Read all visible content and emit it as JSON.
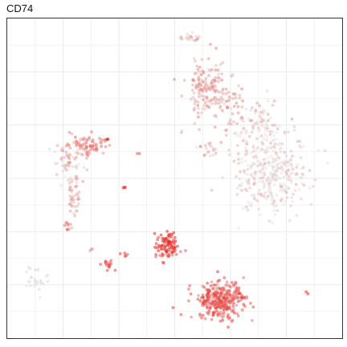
{
  "chart_data": {
    "type": "scatter",
    "title": "CD74",
    "xlabel": "",
    "ylabel": "",
    "grid": true,
    "x_tick_labels": [],
    "y_tick_labels": [],
    "xlim": [
      0,
      100
    ],
    "ylim": [
      0,
      100
    ],
    "color_scale": {
      "low": "#e5e5e5",
      "high": "#e8221c"
    },
    "clusters": [
      {
        "cx": 55,
        "cy": 94,
        "sx": 1.6,
        "sy": 0.7,
        "n": 26,
        "expr": 0.22
      },
      {
        "cx": 59,
        "cy": 79,
        "sx": 2.6,
        "sy": 4.6,
        "n": 140,
        "expr": 0.35
      },
      {
        "cx": 66,
        "cy": 75,
        "sx": 2.8,
        "sy": 2.4,
        "n": 55,
        "expr": 0.3
      },
      {
        "cx": 74,
        "cy": 67,
        "sx": 4.5,
        "sy": 3.5,
        "n": 90,
        "expr": 0.18
      },
      {
        "cx": 79,
        "cy": 52,
        "sx": 5.5,
        "sy": 6.5,
        "n": 330,
        "expr": 0.08
      },
      {
        "cx": 60,
        "cy": 59,
        "sx": 1.5,
        "sy": 1.2,
        "n": 22,
        "expr": 0.18
      },
      {
        "cx": 24,
        "cy": 60,
        "sx": 3.2,
        "sy": 1.6,
        "n": 70,
        "expr": 0.5
      },
      {
        "cx": 18,
        "cy": 55,
        "sx": 2.0,
        "sy": 3.5,
        "n": 60,
        "expr": 0.22
      },
      {
        "cx": 20,
        "cy": 45,
        "sx": 1.0,
        "sy": 4.5,
        "n": 45,
        "expr": 0.3
      },
      {
        "cx": 18,
        "cy": 35,
        "sx": 0.6,
        "sy": 1.0,
        "n": 10,
        "expr": 0.5
      },
      {
        "cx": 9,
        "cy": 19,
        "sx": 1.4,
        "sy": 2.3,
        "n": 30,
        "expr": 0.05
      },
      {
        "cx": 30,
        "cy": 23,
        "sx": 1.3,
        "sy": 0.8,
        "n": 18,
        "expr": 0.65
      },
      {
        "cx": 35,
        "cy": 26,
        "sx": 0.6,
        "sy": 0.6,
        "n": 6,
        "expr": 0.75
      },
      {
        "cx": 48,
        "cy": 29,
        "sx": 1.8,
        "sy": 2.2,
        "n": 110,
        "expr": 0.85
      },
      {
        "cx": 64,
        "cy": 12,
        "sx": 3.5,
        "sy": 2.8,
        "n": 330,
        "expr": 0.7
      },
      {
        "cx": 25,
        "cy": 28,
        "sx": 0.3,
        "sy": 0.3,
        "n": 3,
        "expr": 0.5
      },
      {
        "cx": 39,
        "cy": 58,
        "sx": 0.3,
        "sy": 0.3,
        "n": 3,
        "expr": 0.4
      },
      {
        "cx": 35,
        "cy": 47,
        "sx": 0.3,
        "sy": 0.3,
        "n": 3,
        "expr": 0.95
      },
      {
        "cx": 30,
        "cy": 62,
        "sx": 0.3,
        "sy": 0.3,
        "n": 3,
        "expr": 0.9
      },
      {
        "cx": 90,
        "cy": 14,
        "sx": 0.3,
        "sy": 0.3,
        "n": 2,
        "expr": 0.85
      },
      {
        "cx": 52,
        "cy": 65,
        "sx": 0.3,
        "sy": 0.3,
        "n": 2,
        "expr": 0.2
      }
    ]
  }
}
